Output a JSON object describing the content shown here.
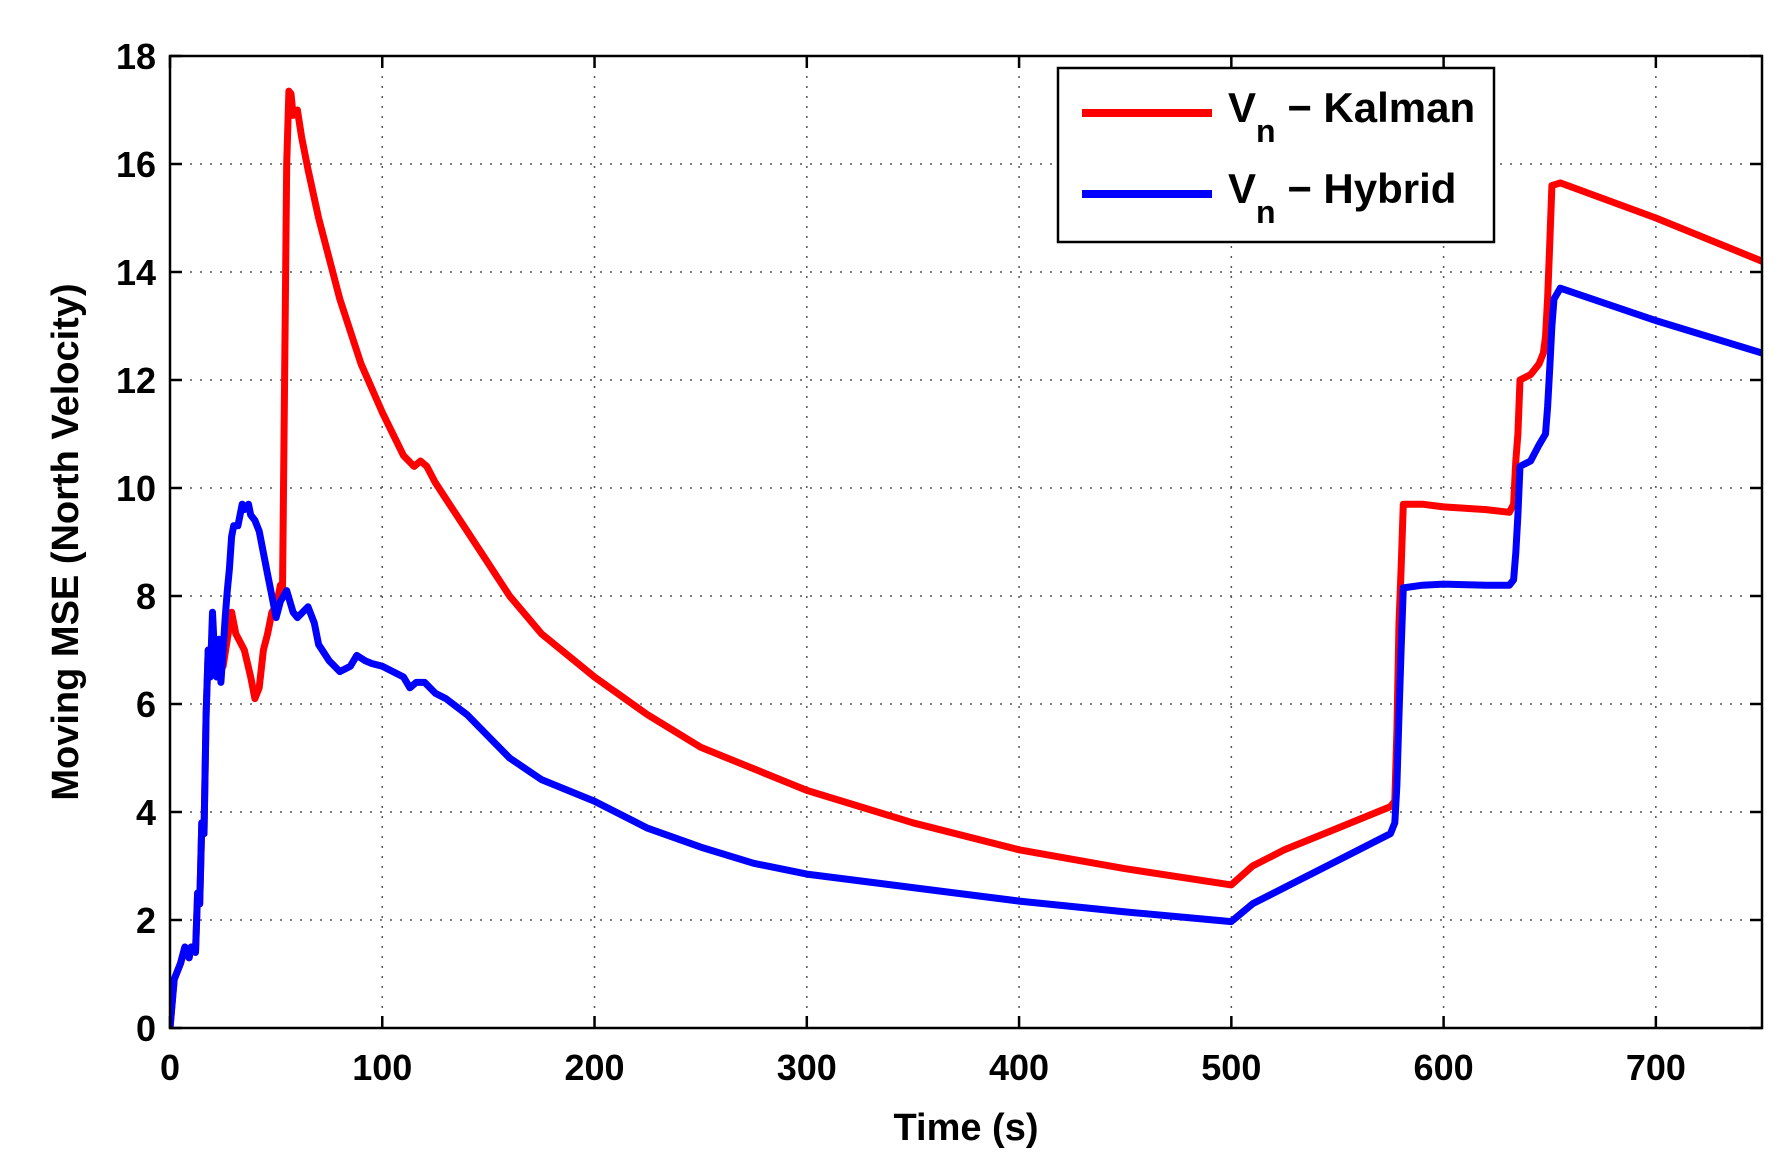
{
  "chart_data": {
    "type": "line",
    "title": "",
    "xlabel": "Time (s)",
    "ylabel": "Moving MSE (North Velocity)",
    "xlim": [
      0,
      750
    ],
    "ylim": [
      0,
      18
    ],
    "xticks": [
      0,
      100,
      200,
      300,
      400,
      500,
      600,
      700
    ],
    "yticks": [
      0,
      2,
      4,
      6,
      8,
      10,
      12,
      14,
      16,
      18
    ],
    "xtick_labels": [
      "0",
      "100",
      "200",
      "300",
      "400",
      "500",
      "600",
      "700"
    ],
    "ytick_labels": [
      "0",
      "2",
      "4",
      "6",
      "8",
      "10",
      "12",
      "14",
      "16",
      "18"
    ],
    "grid": true,
    "legend_position": "top-right",
    "series": [
      {
        "name": "Vn - Kalman",
        "legend_main": "V",
        "legend_sub": "n",
        "legend_suffix": " − Kalman",
        "color": "#ff0000",
        "points": [
          [
            0,
            0
          ],
          [
            2,
            0.9
          ],
          [
            5,
            1.2
          ],
          [
            7,
            1.5
          ],
          [
            9,
            1.3
          ],
          [
            10,
            1.5
          ],
          [
            12,
            1.4
          ],
          [
            13,
            2.5
          ],
          [
            14,
            2.3
          ],
          [
            15,
            3.8
          ],
          [
            16,
            3.6
          ],
          [
            17,
            5.8
          ],
          [
            18,
            7.0
          ],
          [
            19,
            6.8
          ],
          [
            20,
            6.6
          ],
          [
            21,
            7.2
          ],
          [
            23,
            6.9
          ],
          [
            25,
            6.7
          ],
          [
            27,
            7.2
          ],
          [
            29,
            7.7
          ],
          [
            31,
            7.3
          ],
          [
            35,
            7.0
          ],
          [
            38,
            6.5
          ],
          [
            40,
            6.1
          ],
          [
            42,
            6.3
          ],
          [
            44,
            7.0
          ],
          [
            46,
            7.3
          ],
          [
            48,
            7.7
          ],
          [
            50,
            7.8
          ],
          [
            52,
            8.2
          ],
          [
            53,
            8.1
          ],
          [
            54,
            12.0
          ],
          [
            55,
            16.0
          ],
          [
            56,
            17.35
          ],
          [
            57,
            17.3
          ],
          [
            58,
            16.9
          ],
          [
            60,
            17.0
          ],
          [
            62,
            16.5
          ],
          [
            65,
            15.9
          ],
          [
            70,
            15.0
          ],
          [
            80,
            13.5
          ],
          [
            90,
            12.3
          ],
          [
            100,
            11.4
          ],
          [
            110,
            10.6
          ],
          [
            115,
            10.4
          ],
          [
            118,
            10.5
          ],
          [
            121,
            10.4
          ],
          [
            125,
            10.1
          ],
          [
            130,
            9.8
          ],
          [
            140,
            9.2
          ],
          [
            150,
            8.6
          ],
          [
            160,
            8.0
          ],
          [
            175,
            7.3
          ],
          [
            200,
            6.5
          ],
          [
            225,
            5.8
          ],
          [
            250,
            5.2
          ],
          [
            275,
            4.8
          ],
          [
            300,
            4.4
          ],
          [
            350,
            3.8
          ],
          [
            400,
            3.3
          ],
          [
            450,
            2.95
          ],
          [
            500,
            2.65
          ],
          [
            510,
            3.0
          ],
          [
            525,
            3.3
          ],
          [
            550,
            3.7
          ],
          [
            575,
            4.1
          ],
          [
            577,
            4.2
          ],
          [
            578,
            5.5
          ],
          [
            579,
            7.5
          ],
          [
            580,
            8.5
          ],
          [
            581,
            9.7
          ],
          [
            590,
            9.7
          ],
          [
            600,
            9.65
          ],
          [
            620,
            9.6
          ],
          [
            631,
            9.55
          ],
          [
            633,
            9.7
          ],
          [
            634,
            10.5
          ],
          [
            635,
            11.0
          ],
          [
            636,
            12.0
          ],
          [
            641,
            12.1
          ],
          [
            643,
            12.2
          ],
          [
            645,
            12.3
          ],
          [
            647,
            12.5
          ],
          [
            648,
            12.8
          ],
          [
            649,
            13.5
          ],
          [
            650,
            14.5
          ],
          [
            651,
            15.6
          ],
          [
            655,
            15.65
          ],
          [
            700,
            15.0
          ],
          [
            750,
            14.2
          ]
        ]
      },
      {
        "name": "Vn - Hybrid",
        "legend_main": "V",
        "legend_sub": "n",
        "legend_suffix": " − Hybrid",
        "color": "#0000ff",
        "points": [
          [
            0,
            0
          ],
          [
            2,
            0.9
          ],
          [
            5,
            1.2
          ],
          [
            7,
            1.5
          ],
          [
            9,
            1.3
          ],
          [
            10,
            1.5
          ],
          [
            12,
            1.4
          ],
          [
            13,
            2.5
          ],
          [
            14,
            2.3
          ],
          [
            15,
            3.8
          ],
          [
            16,
            3.6
          ],
          [
            17,
            5.8
          ],
          [
            18,
            7.0
          ],
          [
            19,
            6.5
          ],
          [
            20,
            7.7
          ],
          [
            21,
            6.9
          ],
          [
            22,
            6.5
          ],
          [
            23,
            7.2
          ],
          [
            24,
            6.4
          ],
          [
            25,
            7.0
          ],
          [
            26,
            7.6
          ],
          [
            27,
            8.1
          ],
          [
            28,
            8.5
          ],
          [
            29,
            9.1
          ],
          [
            30,
            9.3
          ],
          [
            32,
            9.3
          ],
          [
            34,
            9.7
          ],
          [
            35,
            9.6
          ],
          [
            37,
            9.7
          ],
          [
            38,
            9.5
          ],
          [
            40,
            9.4
          ],
          [
            42,
            9.2
          ],
          [
            44,
            8.8
          ],
          [
            46,
            8.4
          ],
          [
            48,
            8.0
          ],
          [
            50,
            7.6
          ],
          [
            52,
            7.9
          ],
          [
            55,
            8.1
          ],
          [
            58,
            7.7
          ],
          [
            60,
            7.6
          ],
          [
            65,
            7.8
          ],
          [
            68,
            7.5
          ],
          [
            70,
            7.1
          ],
          [
            75,
            6.8
          ],
          [
            80,
            6.6
          ],
          [
            85,
            6.7
          ],
          [
            88,
            6.9
          ],
          [
            92,
            6.8
          ],
          [
            95,
            6.75
          ],
          [
            100,
            6.7
          ],
          [
            105,
            6.6
          ],
          [
            110,
            6.5
          ],
          [
            113,
            6.3
          ],
          [
            116,
            6.4
          ],
          [
            120,
            6.4
          ],
          [
            125,
            6.2
          ],
          [
            130,
            6.1
          ],
          [
            140,
            5.8
          ],
          [
            150,
            5.4
          ],
          [
            160,
            5.0
          ],
          [
            175,
            4.6
          ],
          [
            200,
            4.2
          ],
          [
            225,
            3.7
          ],
          [
            250,
            3.35
          ],
          [
            275,
            3.05
          ],
          [
            300,
            2.85
          ],
          [
            350,
            2.6
          ],
          [
            400,
            2.35
          ],
          [
            450,
            2.15
          ],
          [
            500,
            1.97
          ],
          [
            510,
            2.3
          ],
          [
            525,
            2.6
          ],
          [
            550,
            3.1
          ],
          [
            575,
            3.6
          ],
          [
            577,
            3.8
          ],
          [
            578,
            4.5
          ],
          [
            579,
            5.8
          ],
          [
            580,
            7.0
          ],
          [
            581,
            8.15
          ],
          [
            590,
            8.2
          ],
          [
            600,
            8.22
          ],
          [
            620,
            8.2
          ],
          [
            631,
            8.2
          ],
          [
            633,
            8.3
          ],
          [
            634,
            8.8
          ],
          [
            635,
            9.5
          ],
          [
            636,
            10.4
          ],
          [
            641,
            10.5
          ],
          [
            645,
            10.8
          ],
          [
            648,
            11.0
          ],
          [
            649,
            11.5
          ],
          [
            650,
            12.2
          ],
          [
            651,
            13.0
          ],
          [
            652,
            13.5
          ],
          [
            655,
            13.7
          ],
          [
            700,
            13.1
          ],
          [
            750,
            12.5
          ]
        ]
      }
    ]
  }
}
